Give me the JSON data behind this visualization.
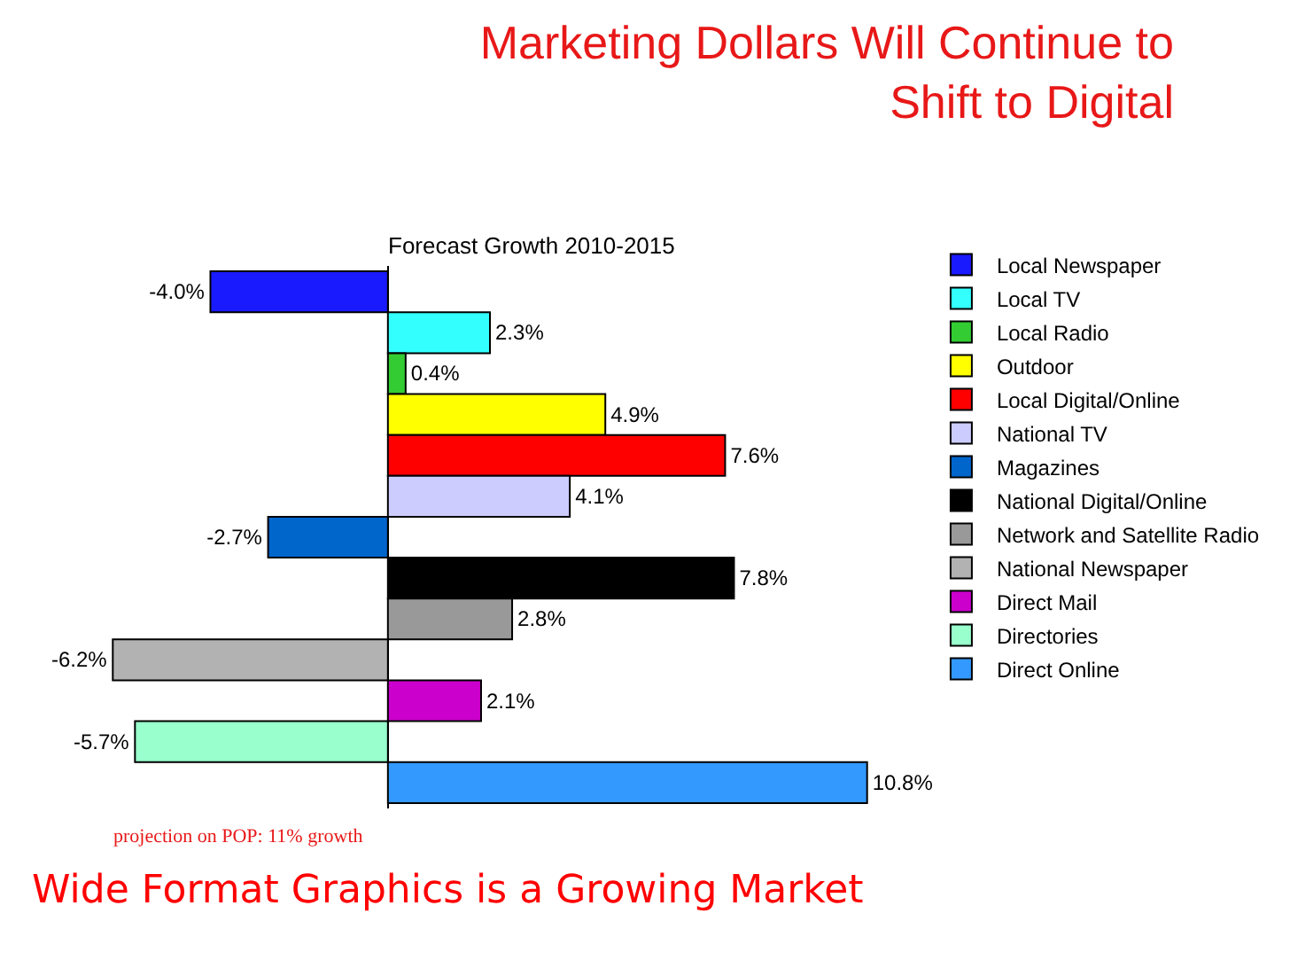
{
  "chart_data": {
    "type": "bar",
    "orientation": "horizontal",
    "title": "Marketing Dollars Will Continue to Shift to Digital",
    "subtitle": "Forecast Growth 2010-2015",
    "categories": [
      null
    ],
    "series": [
      {
        "name": "Local Newspaper",
        "color": "#1a1aff",
        "values": [
          -4.0
        ],
        "value_labels": [
          "-4.0%"
        ]
      },
      {
        "name": "Local TV",
        "color": "#33ffff",
        "values": [
          2.3
        ],
        "value_labels": [
          "2.3%"
        ]
      },
      {
        "name": "Local Radio",
        "color": "#33cc33",
        "values": [
          0.4
        ],
        "value_labels": [
          "0.4%"
        ]
      },
      {
        "name": "Outdoor",
        "color": "#ffff00",
        "values": [
          4.9
        ],
        "value_labels": [
          "4.9%"
        ]
      },
      {
        "name": "Local Digital/Online",
        "color": "#ff0000",
        "values": [
          7.6
        ],
        "value_labels": [
          "7.6%"
        ]
      },
      {
        "name": "National TV",
        "color": "#ccccff",
        "values": [
          4.1
        ],
        "value_labels": [
          "4.1%"
        ]
      },
      {
        "name": "Magazines",
        "color": "#0066cc",
        "values": [
          -2.7
        ],
        "value_labels": [
          "-2.7%"
        ]
      },
      {
        "name": "National Digital/Online",
        "color": "#000000",
        "values": [
          7.8
        ],
        "value_labels": [
          "7.8%"
        ]
      },
      {
        "name": "Network and Satellite Radio",
        "color": "#999999",
        "values": [
          2.8
        ],
        "value_labels": [
          "2.8%"
        ]
      },
      {
        "name": "National Newspaper",
        "color": "#b2b2b2",
        "values": [
          -6.2
        ],
        "value_labels": [
          "-6.2%"
        ]
      },
      {
        "name": "Direct Mail",
        "color": "#cc00cc",
        "values": [
          2.1
        ],
        "value_labels": [
          "2.1%"
        ]
      },
      {
        "name": "Directories",
        "color": "#99ffcc",
        "values": [
          -5.7
        ],
        "value_labels": [
          "-5.7%"
        ]
      },
      {
        "name": "Direct Online",
        "color": "#3399ff",
        "values": [
          10.8
        ],
        "value_labels": [
          "10.8%"
        ]
      }
    ],
    "legend": "right",
    "tick_labels": false,
    "annotations": [
      "projection on POP: 11% growth",
      "Wide Format Graphics is a Growing Market"
    ]
  }
}
